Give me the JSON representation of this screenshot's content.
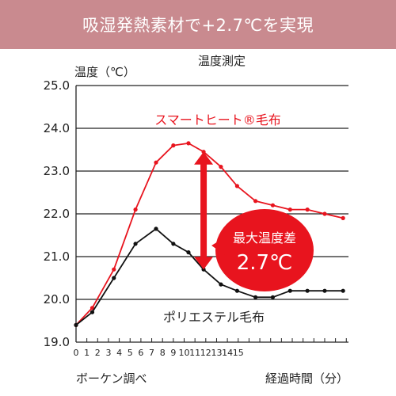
{
  "banner": {
    "text": "吸湿発熱素材で+2.7℃を実現"
  },
  "chart_data": {
    "type": "line",
    "title": "温度測定",
    "ylabel": "温度（℃）",
    "xlabel": "経過時間（分）",
    "source": "ボーケン調べ",
    "ylim": [
      19.0,
      25.0
    ],
    "yticks": [
      "19.0",
      "20.0",
      "21.0",
      "22.0",
      "23.0",
      "24.0",
      "25.0"
    ],
    "xlim": [
      0,
      25.2
    ],
    "xtick_labels": [
      "0",
      "1",
      "2",
      "3",
      "4",
      "5",
      "6",
      "7",
      "8",
      "9",
      "10",
      "11",
      "12",
      "13",
      "14",
      "15"
    ],
    "grid": true,
    "series": [
      {
        "name": "スマートヒート®毛布",
        "color": "#e8141e",
        "x": [
          0,
          1.5,
          3.5,
          5.5,
          7.4,
          9.0,
          10.4,
          11.8,
          13.4,
          14.9,
          16.6,
          18.2,
          19.8,
          21.4,
          23.0,
          24.7
        ],
        "values": [
          19.4,
          19.8,
          20.7,
          22.1,
          23.2,
          23.6,
          23.65,
          23.45,
          23.1,
          22.65,
          22.3,
          22.2,
          22.1,
          22.1,
          22.0,
          21.9
        ]
      },
      {
        "name": "ポリエステル毛布",
        "color": "#111111",
        "x": [
          0,
          1.5,
          3.5,
          5.5,
          7.4,
          9.0,
          10.4,
          11.8,
          13.4,
          14.9,
          16.6,
          18.2,
          19.8,
          21.4,
          23.0,
          24.7
        ],
        "values": [
          19.4,
          19.7,
          20.5,
          21.3,
          21.65,
          21.3,
          21.1,
          20.7,
          20.35,
          20.2,
          20.05,
          20.05,
          20.2,
          20.2,
          20.2,
          20.2
        ]
      }
    ],
    "annotation": {
      "line1": "最大温度差",
      "line2": "2.7℃",
      "x": 11.8,
      "from": 20.7,
      "to": 23.45
    }
  }
}
